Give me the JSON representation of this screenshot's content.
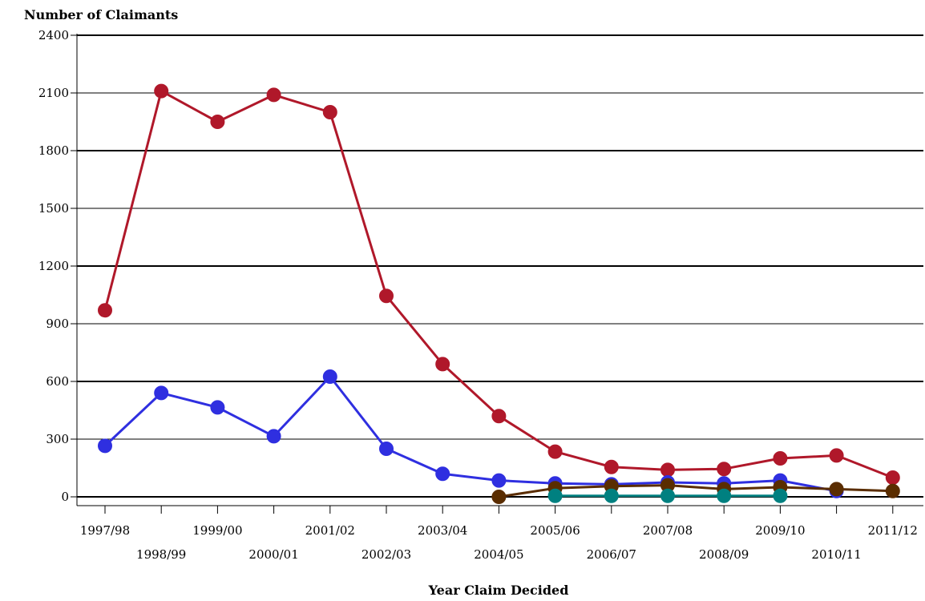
{
  "chart_data": {
    "type": "line",
    "title": "",
    "ylabel": "Number of Claimants",
    "xlabel": "Year Claim Decided",
    "categories": [
      "1997/98",
      "1998/99",
      "1999/00",
      "2000/01",
      "2001/02",
      "2002/03",
      "2003/04",
      "2004/05",
      "2005/06",
      "2006/07",
      "2007/08",
      "2008/09",
      "2009/10",
      "2010/11",
      "2011/12"
    ],
    "ylim": [
      0,
      2400
    ],
    "yticks": [
      0,
      300,
      600,
      900,
      1200,
      1500,
      1800,
      2100,
      2400
    ],
    "grid": true,
    "legend": "none",
    "series": [
      {
        "color": "#b0182a",
        "values": [
          970,
          2110,
          1950,
          2090,
          2000,
          1045,
          690,
          420,
          235,
          155,
          140,
          145,
          200,
          215,
          100
        ]
      },
      {
        "color": "#2f2fe0",
        "values": [
          265,
          540,
          465,
          315,
          625,
          250,
          120,
          85,
          70,
          65,
          75,
          70,
          85,
          30,
          null
        ]
      },
      {
        "color": "#5a2d00",
        "values": [
          null,
          null,
          null,
          null,
          null,
          null,
          null,
          0,
          45,
          55,
          60,
          40,
          50,
          40,
          30
        ]
      },
      {
        "color": "#008080",
        "values": [
          null,
          null,
          null,
          null,
          null,
          null,
          null,
          null,
          5,
          5,
          5,
          5,
          5,
          null,
          null
        ]
      }
    ]
  }
}
